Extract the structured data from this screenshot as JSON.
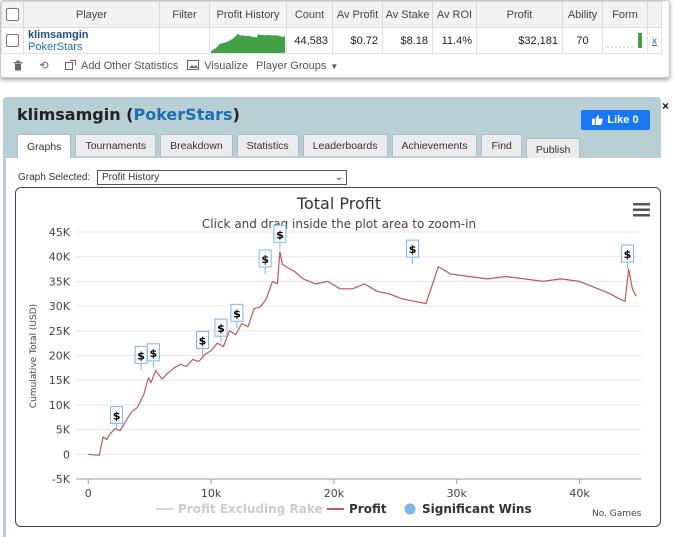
{
  "stats_table": {
    "headers": [
      "Player",
      "Filter",
      "Profit History",
      "Count",
      "Av Profit",
      "Av Stake",
      "Av ROI",
      "Profit",
      "Ability",
      "Form"
    ],
    "row": {
      "player_name": "klimsamgin",
      "player_site": "PokerStars",
      "filter": "",
      "count": "44,583",
      "av_profit": "$0.72",
      "av_stake": "$8.18",
      "av_roi": "11.4%",
      "profit": "$32,181",
      "ability": "70",
      "remove": "x"
    },
    "spark_color": "#43a047"
  },
  "toolbar": {
    "delete_icon": "trash-icon",
    "refresh_icon": "refresh-icon",
    "add_stats_label": "Add Other Statistics",
    "visualize_label": "Visualize",
    "player_groups_label": "Player Groups"
  },
  "panel": {
    "player": "klimsamgin",
    "site": "PokerStars",
    "close": "×",
    "like_label": "Like 0",
    "tabs": [
      "Graphs",
      "Tournaments",
      "Breakdown",
      "Statistics",
      "Leaderboards",
      "Achievements",
      "Find",
      "Publish"
    ],
    "active_tab": "Graphs",
    "graph_select_label": "Graph Selected:",
    "graph_select_value": "Profit History"
  },
  "colors": {
    "accent": "#1d6fb5",
    "panel_bg": "#b8cfd6",
    "facebook": "#1877f2",
    "profit_line": "#c0575a",
    "significant": "#7cb5ec"
  },
  "chart_data": {
    "type": "line",
    "title": "Total Profit",
    "subtitle": "Click and drag inside the plot area to zoom-in",
    "ylabel": "Cumulative Total (USD)",
    "xlabel": "No. Games",
    "ylim": [
      -5000,
      45000
    ],
    "xlim": [
      -1000,
      45000
    ],
    "y_ticks": [
      "-5K",
      "0",
      "5K",
      "10K",
      "15K",
      "20K",
      "25K",
      "30K",
      "35K",
      "40K",
      "45K"
    ],
    "x_ticks": [
      "0",
      "10k",
      "20k",
      "30k",
      "40k"
    ],
    "legend": [
      "Profit Excluding Rake",
      "Profit",
      "Significant Wins"
    ],
    "grid": true,
    "series": [
      {
        "name": "Profit",
        "x": [
          0,
          400,
          900,
          1200,
          1500,
          1800,
          2200,
          2600,
          3000,
          3500,
          4000,
          4500,
          4900,
          5100,
          5500,
          6000,
          6500,
          7000,
          7500,
          8000,
          8500,
          9000,
          9500,
          10000,
          10500,
          11000,
          11500,
          12000,
          12500,
          13000,
          13500,
          14000,
          14500,
          15000,
          15400,
          15600,
          15800,
          16200,
          16800,
          17500,
          18500,
          19500,
          20500,
          21500,
          22500,
          23500,
          24500,
          25500,
          26500,
          27500,
          28500,
          29500,
          31000,
          32500,
          34000,
          35500,
          37000,
          38500,
          40000,
          41500,
          42500,
          43200,
          43700,
          44000,
          44300,
          44600
        ],
        "y": [
          0,
          -100,
          -200,
          3500,
          3000,
          4200,
          5200,
          4800,
          6500,
          8500,
          9500,
          12000,
          15500,
          14500,
          17000,
          15200,
          16500,
          17500,
          18200,
          17800,
          19200,
          18800,
          20200,
          21000,
          22500,
          21800,
          25000,
          24200,
          26500,
          25800,
          29500,
          29800,
          31500,
          35000,
          34500,
          41000,
          38500,
          37800,
          37000,
          35500,
          34500,
          35000,
          33500,
          33500,
          34500,
          33000,
          32500,
          31500,
          31000,
          30500,
          38000,
          36500,
          36000,
          35500,
          36000,
          35500,
          35000,
          35500,
          35000,
          33500,
          32500,
          31500,
          31000,
          37500,
          33500,
          32000
        ]
      }
    ],
    "significant_wins": [
      {
        "x": 2300,
        "y": 4800
      },
      {
        "x": 4300,
        "y": 17000
      },
      {
        "x": 5300,
        "y": 17500
      },
      {
        "x": 9300,
        "y": 20000
      },
      {
        "x": 10800,
        "y": 22500
      },
      {
        "x": 12100,
        "y": 25500
      },
      {
        "x": 14400,
        "y": 36500
      },
      {
        "x": 15600,
        "y": 41500
      },
      {
        "x": 26400,
        "y": 38500
      },
      {
        "x": 43900,
        "y": 37500
      }
    ],
    "win_marker_label": "$"
  }
}
